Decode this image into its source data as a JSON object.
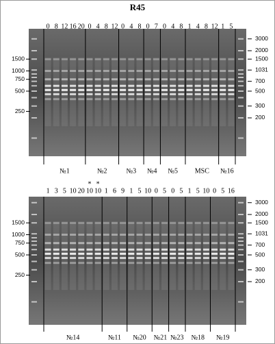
{
  "title": "R45",
  "panels": [
    {
      "groups": [
        {
          "name": "№1",
          "lanes": [
            "0",
            "8",
            "12",
            "16",
            "20"
          ]
        },
        {
          "name": "№2",
          "lanes": [
            "0",
            "4",
            "8",
            "12"
          ]
        },
        {
          "name": "№3",
          "lanes": [
            "0",
            "4",
            "8"
          ]
        },
        {
          "name": "№4",
          "lanes": [
            "0",
            "7"
          ]
        },
        {
          "name": "№5",
          "lanes": [
            "0",
            "4",
            "8"
          ]
        },
        {
          "name": "MSC",
          "lanes": [
            "1",
            "4",
            "8",
            "12"
          ]
        },
        {
          "name": "№16",
          "lanes": [
            "1",
            "5"
          ]
        }
      ],
      "left_markers": [
        1500,
        1000,
        750,
        500,
        250
      ],
      "right_markers": [
        3000,
        2000,
        1500,
        1031,
        700,
        500,
        300,
        200
      ]
    },
    {
      "groups": [
        {
          "name": "№14",
          "lanes": [
            "1",
            "3",
            "5",
            "10",
            "20",
            {
              "label": "10",
              "note": "*"
            },
            {
              "label": "10",
              "note": "*"
            }
          ]
        },
        {
          "name": "№11",
          "lanes": [
            "1",
            "6",
            "9"
          ]
        },
        {
          "name": "№20",
          "lanes": [
            "1",
            "5",
            "10"
          ]
        },
        {
          "name": "№21",
          "lanes": [
            "0",
            "5"
          ]
        },
        {
          "name": "№23",
          "lanes": [
            "0",
            "5"
          ]
        },
        {
          "name": "№18",
          "lanes": [
            "1",
            "5",
            "10"
          ]
        },
        {
          "name": "№19",
          "lanes": [
            "0",
            "5",
            "16"
          ]
        }
      ],
      "left_markers": [
        1500,
        1000,
        750,
        500,
        250
      ],
      "right_markers": [
        3000,
        2000,
        1500,
        1031,
        700,
        500,
        300,
        200
      ]
    }
  ]
}
